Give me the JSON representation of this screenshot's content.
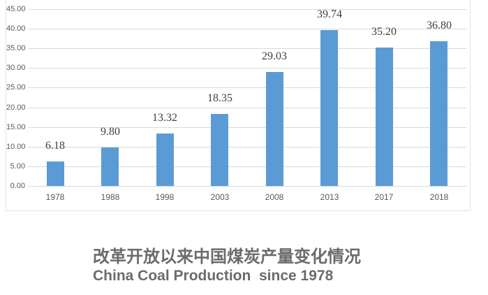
{
  "chart_data": {
    "type": "bar",
    "categories": [
      "1978",
      "1988",
      "1998",
      "2003",
      "2008",
      "2013",
      "2017",
      "2018"
    ],
    "values": [
      6.18,
      9.8,
      13.32,
      18.35,
      29.03,
      39.74,
      35.2,
      36.8
    ],
    "value_labels": [
      "6.18",
      "9.80",
      "13.32",
      "18.35",
      "29.03",
      "39.74",
      "35.20",
      "36.80"
    ],
    "title": "改革开放以来中国煤炭产量变化情况",
    "subtitle": "China Coal Production  since 1978",
    "xlabel": "",
    "ylabel": "",
    "ylim": [
      0,
      45
    ],
    "y_tick_step": 5,
    "y_tick_labels": [
      "0.00",
      "5.00",
      "10.00",
      "15.00",
      "20.00",
      "25.00",
      "30.00",
      "35.00",
      "40.00",
      "45.00"
    ],
    "grid": true,
    "legend_position": "none",
    "bar_color": "#5b9bd5",
    "gridline_color": "#d9d9d9"
  },
  "caption": {
    "line1": "改革开放以来中国煤炭产量变化情况",
    "line2": "China Coal Production  since 1978"
  }
}
